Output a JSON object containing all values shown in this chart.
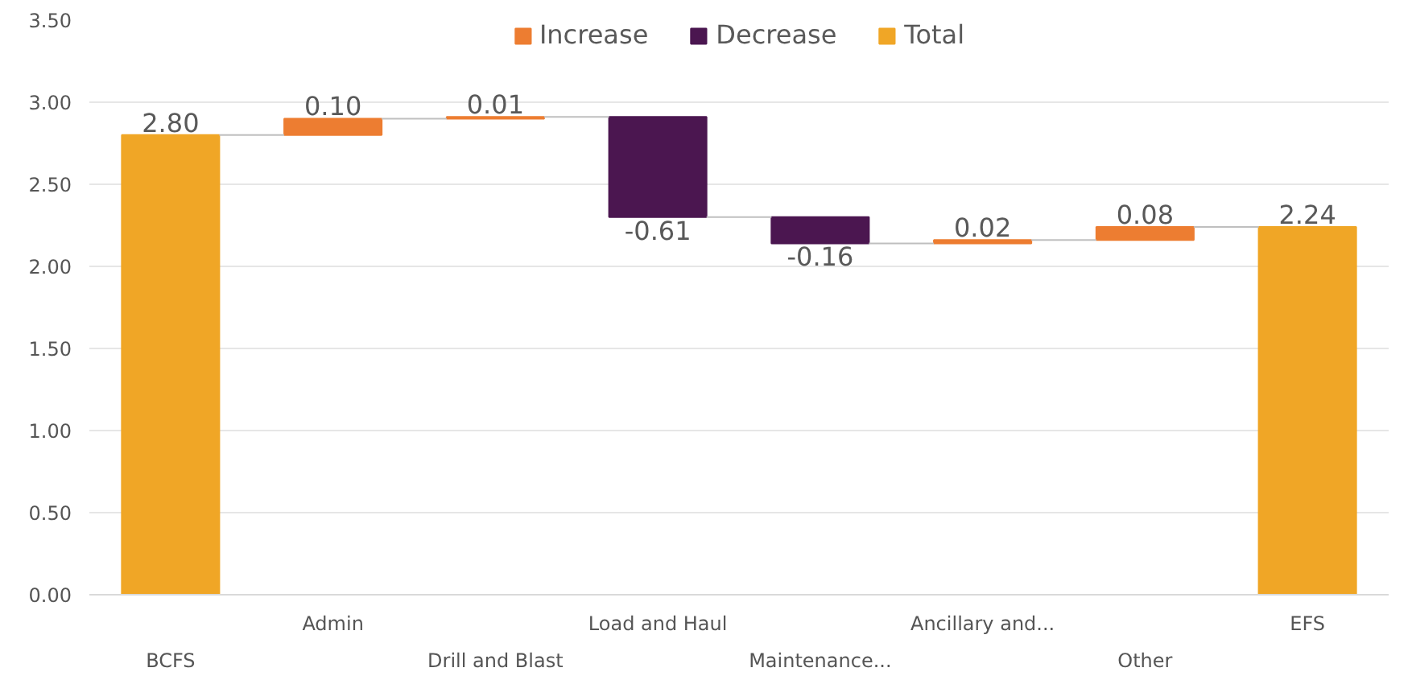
{
  "chart_data": {
    "type": "bar",
    "categories": [
      "BCFS",
      "Admin",
      "Drill and Blast",
      "Load and Haul",
      "Maintenance...",
      "Ancillary and...",
      "Other",
      "EFS"
    ],
    "series": [
      {
        "name": "Increase",
        "color": "#ed7d31",
        "base": [
          null,
          2.8,
          2.9,
          null,
          null,
          2.14,
          2.16,
          null
        ],
        "values": [
          null,
          0.1,
          0.01,
          null,
          null,
          0.02,
          0.08,
          null
        ],
        "value_labels": [
          null,
          "0.10",
          "0.01",
          null,
          null,
          "0.02",
          "0.08",
          null
        ]
      },
      {
        "name": "Decrease",
        "color": "#4b1650",
        "base": [
          null,
          null,
          null,
          2.91,
          2.3,
          null,
          null,
          null
        ],
        "values": [
          null,
          null,
          null,
          -0.61,
          -0.16,
          null,
          null,
          null
        ],
        "value_labels": [
          null,
          null,
          null,
          "-0.61",
          "-0.16",
          null,
          null,
          null
        ]
      },
      {
        "name": "Total",
        "color": "#f0a626",
        "base": [
          0,
          null,
          null,
          null,
          null,
          null,
          null,
          0
        ],
        "values": [
          2.8,
          null,
          null,
          null,
          null,
          null,
          null,
          2.24
        ],
        "value_labels": [
          "2.80",
          null,
          null,
          null,
          null,
          null,
          null,
          "2.24"
        ]
      }
    ],
    "ylim": [
      0,
      3.5
    ],
    "yticks": [
      {
        "value": 0,
        "label": "0.00"
      },
      {
        "value": 0.5,
        "label": "0.50"
      },
      {
        "value": 1,
        "label": "1.00"
      },
      {
        "value": 1.5,
        "label": "1.50"
      },
      {
        "value": 2,
        "label": "2.00"
      },
      {
        "value": 2.5,
        "label": "2.50"
      },
      {
        "value": 3,
        "label": "3.00"
      },
      {
        "value": 3.5,
        "label": "3.50"
      }
    ],
    "grid": "y",
    "legend": "top"
  }
}
